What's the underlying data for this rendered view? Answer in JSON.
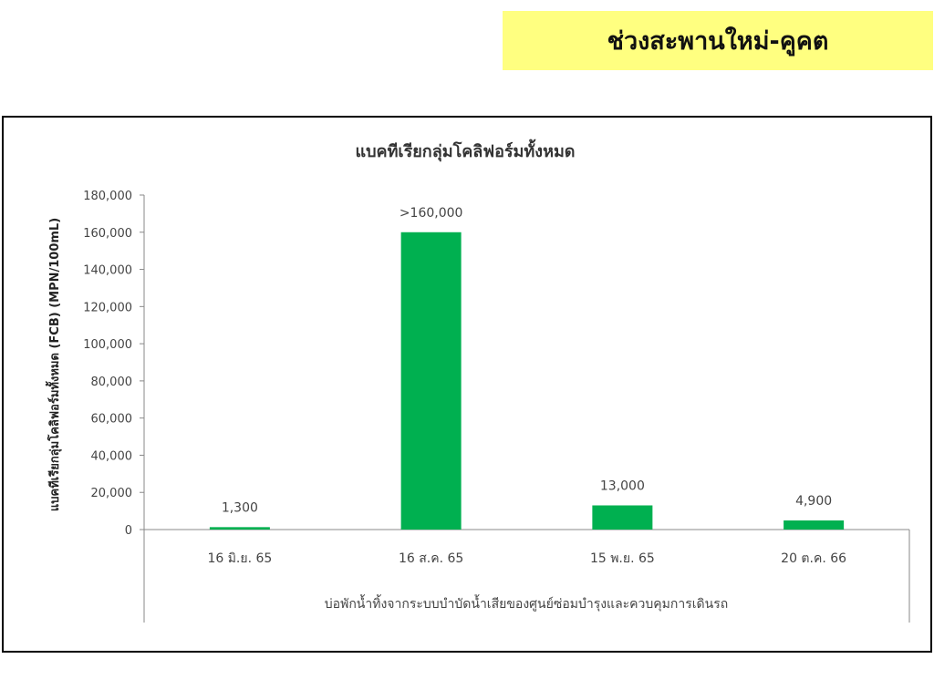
{
  "header": {
    "title": "ช่วงสะพานใหม่-คูคต",
    "background": "#ffff80"
  },
  "chart_data": {
    "type": "bar",
    "title": "แบคทีเรียกลุ่มโคลิฟอร์มทั้งหมด",
    "ylabel": "แบคทีเรียกลุ่มโคลิฟอร์มทั้งหมด (FCB) (MPN/100mL)",
    "xlabel": "บ่อพักน้ำทิ้งจากระบบบำบัดน้ำเสียของศูนย์ซ่อมบำรุงและควบคุมการเดินรถ",
    "categories": [
      "16 มิ.ย. 65",
      "16 ส.ค. 65",
      "15 พ.ย. 65",
      "20 ต.ค. 66"
    ],
    "values": [
      1300,
      160000,
      13000,
      4900
    ],
    "data_labels": [
      "1,300",
      ">160,000",
      "13,000",
      "4,900"
    ],
    "ylim": [
      0,
      180000
    ],
    "yticks": [
      "0",
      "20,000",
      "40,000",
      "60,000",
      "80,000",
      "100,000",
      "120,000",
      "140,000",
      "160,000",
      "180,000"
    ],
    "grid": false,
    "bar_color": "#00b050"
  }
}
